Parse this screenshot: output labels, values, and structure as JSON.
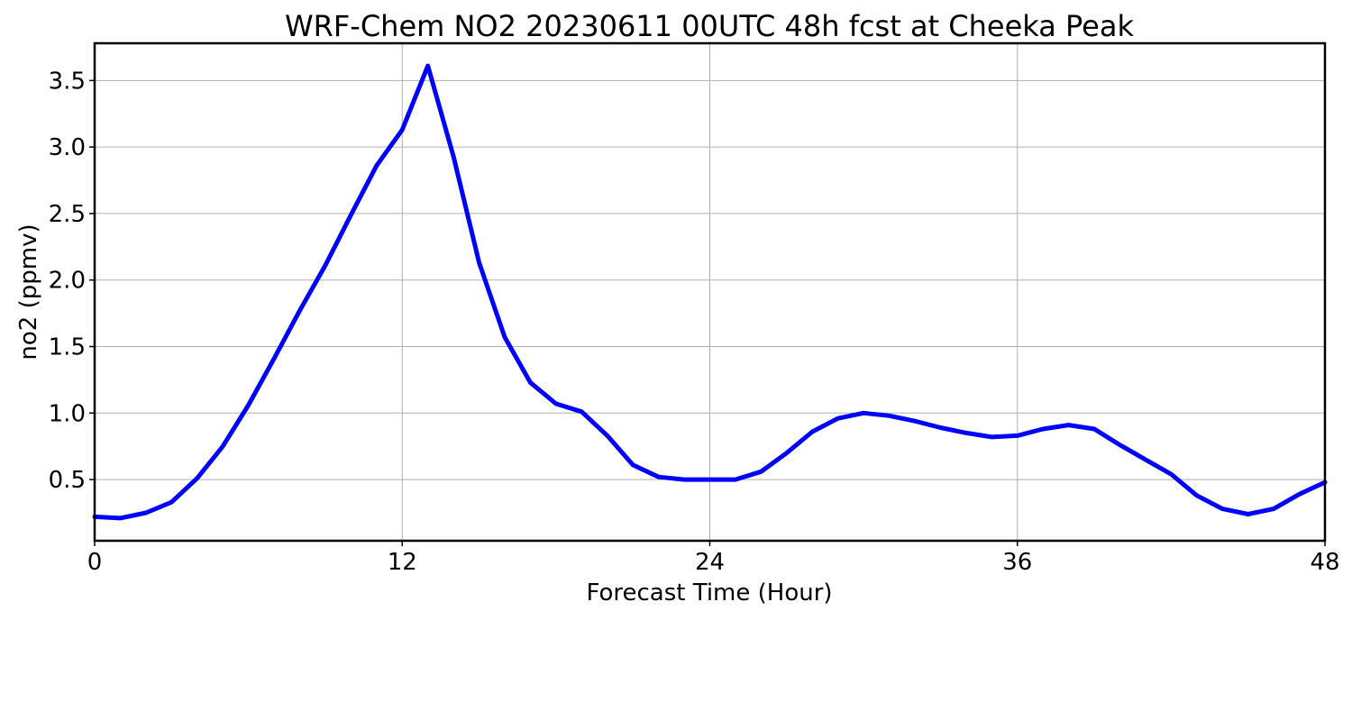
{
  "chart_data": {
    "type": "line",
    "title": "WRF-Chem NO2  20230611 00UTC 48h fcst at Cheeka Peak",
    "xlabel": "Forecast Time (Hour)",
    "ylabel": "no2  (ppmv)",
    "xlim": [
      0,
      48
    ],
    "ylim": [
      0.04,
      3.78
    ],
    "xticks": [
      0,
      12,
      24,
      36,
      48
    ],
    "xtick_labels": [
      "0",
      "12",
      "24",
      "36",
      "48"
    ],
    "yticks": [
      0.5,
      1.0,
      1.5,
      2.0,
      2.5,
      3.0,
      3.5
    ],
    "ytick_labels": [
      "0.5",
      "1.0",
      "1.5",
      "2.0",
      "2.5",
      "3.0",
      "3.5"
    ],
    "grid": true,
    "color": "#0000ff",
    "series": [
      {
        "x": [
          0,
          1,
          2,
          3,
          4,
          5,
          6,
          7,
          8,
          9,
          10,
          11,
          12,
          13,
          14,
          15,
          16,
          17,
          18,
          19,
          20,
          21,
          22,
          23,
          24,
          25,
          26,
          27,
          28,
          29,
          30,
          31,
          32,
          33,
          34,
          35,
          36,
          37,
          38,
          39,
          40,
          41,
          42,
          43,
          44,
          45,
          46,
          47,
          48
        ],
        "values": [
          0.22,
          0.21,
          0.25,
          0.33,
          0.51,
          0.75,
          1.06,
          1.41,
          1.77,
          2.11,
          2.49,
          2.86,
          3.13,
          3.61,
          2.93,
          2.13,
          1.57,
          1.23,
          1.07,
          1.01,
          0.83,
          0.61,
          0.52,
          0.5,
          0.5,
          0.5,
          0.56,
          0.7,
          0.86,
          0.96,
          1.0,
          0.98,
          0.94,
          0.89,
          0.85,
          0.82,
          0.83,
          0.88,
          0.91,
          0.88,
          0.76,
          0.65,
          0.54,
          0.38,
          0.28,
          0.24,
          0.28,
          0.39,
          0.48
        ]
      }
    ]
  }
}
